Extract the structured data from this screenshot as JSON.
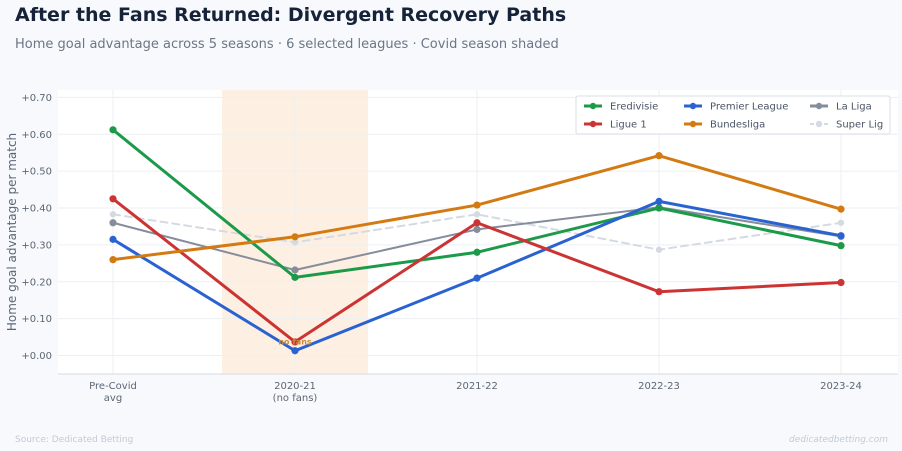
{
  "header": {
    "title": "After the Fans Returned: Divergent Recovery Paths",
    "subtitle": "Home goal advantage across 5 seasons · 6 selected leagues · Covid season shaded"
  },
  "footer": {
    "source": "Source: Dedicated Betting",
    "credit": "dedicatedbetting.com"
  },
  "chart_data": {
    "type": "line",
    "title": "After the Fans Returned: Divergent Recovery Paths",
    "subtitle": "Home goal advantage across 5 seasons · 6 selected leagues · Covid season shaded",
    "xlabel": "",
    "ylabel": "Home goal advantage per match",
    "categories": [
      [
        "Pre-Covid",
        "avg"
      ],
      [
        "2020-21",
        "(no fans)"
      ],
      [
        "2021-22"
      ],
      [
        "2022-23"
      ],
      [
        "2023-24"
      ]
    ],
    "ylim": [
      -0.05,
      0.72
    ],
    "yticks": [
      0.0,
      0.1,
      0.2,
      0.3,
      0.4,
      0.5,
      0.6,
      0.7
    ],
    "ytick_labels": [
      "+0.00",
      "+0.10",
      "+0.20",
      "+0.30",
      "+0.40",
      "+0.50",
      "+0.60",
      "+0.70"
    ],
    "grid": true,
    "legend": "top-right",
    "shaded_region": {
      "category_index": 1,
      "color": "#fdf0e3"
    },
    "annotations": [
      {
        "text": "no fans",
        "category_index": 1,
        "y": 0.035
      }
    ],
    "series": [
      {
        "name": "Eredivisie",
        "color": "#1c9a4a",
        "style": "solid",
        "values": [
          0.612,
          0.212,
          0.28,
          0.4,
          0.298
        ]
      },
      {
        "name": "Ligue 1",
        "color": "#cc3333",
        "style": "solid",
        "values": [
          0.425,
          0.037,
          0.36,
          0.173,
          0.198
        ]
      },
      {
        "name": "Premier League",
        "color": "#2a62d2",
        "style": "solid",
        "values": [
          0.315,
          0.013,
          0.21,
          0.418,
          0.325
        ]
      },
      {
        "name": "Bundesliga",
        "color": "#d47a12",
        "style": "solid",
        "values": [
          0.26,
          0.322,
          0.408,
          0.542,
          0.397
        ]
      },
      {
        "name": "La Liga",
        "color": "#858d9c",
        "style": "solid",
        "values": [
          0.36,
          0.232,
          0.342,
          0.402,
          0.323
        ]
      },
      {
        "name": "Super Lig",
        "color": "#d5dae2",
        "style": "dashed",
        "values": [
          0.383,
          0.307,
          0.383,
          0.287,
          0.36
        ]
      }
    ]
  }
}
